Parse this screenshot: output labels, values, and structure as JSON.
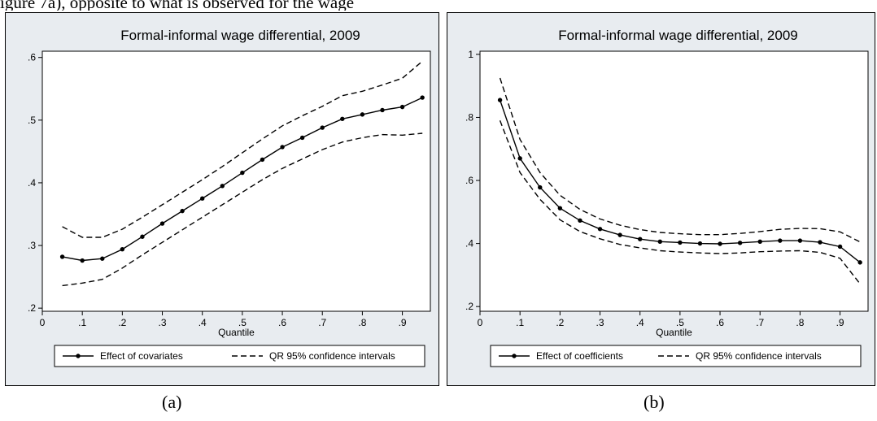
{
  "header_fragment": "igure 7a), opposite to what is observed for the wage",
  "chart_data": [
    {
      "type": "line",
      "title": "Formal-informal wage differential, 2009",
      "xlabel": "Quantile",
      "ylabel": "",
      "xlim": [
        0,
        0.97
      ],
      "ylim": [
        0.195,
        0.61
      ],
      "xticks": [
        0,
        0.1,
        0.2,
        0.3,
        0.4,
        0.5,
        0.6,
        0.7,
        0.8,
        0.9
      ],
      "xtick_labels": [
        "0",
        ".1",
        ".2",
        ".3",
        ".4",
        ".5",
        ".6",
        ".7",
        ".8",
        ".9"
      ],
      "yticks": [
        0.2,
        0.3,
        0.4,
        0.5,
        0.6
      ],
      "ytick_labels": [
        ".2",
        ".3",
        ".4",
        ".5",
        ".6"
      ],
      "grid": false,
      "legend_position": "bottom",
      "x": [
        0.05,
        0.1,
        0.15,
        0.2,
        0.25,
        0.3,
        0.35,
        0.4,
        0.45,
        0.5,
        0.55,
        0.6,
        0.65,
        0.7,
        0.75,
        0.8,
        0.85,
        0.9,
        0.95
      ],
      "series": [
        {
          "name": "Effect of covariates",
          "style": "solid-markers",
          "values": [
            0.282,
            0.276,
            0.279,
            0.294,
            0.314,
            0.335,
            0.355,
            0.375,
            0.395,
            0.416,
            0.437,
            0.457,
            0.472,
            0.488,
            0.502,
            0.509,
            0.516,
            0.521,
            0.536
          ]
        },
        {
          "name": "QR 95% confidence intervals",
          "style": "dashed",
          "values": [
            0.33,
            0.313,
            0.313,
            0.326,
            0.345,
            0.365,
            0.385,
            0.405,
            0.426,
            0.448,
            0.47,
            0.491,
            0.507,
            0.522,
            0.539,
            0.546,
            0.556,
            0.567,
            0.594
          ]
        },
        {
          "name": "",
          "style": "dashed",
          "values": [
            0.236,
            0.24,
            0.246,
            0.264,
            0.285,
            0.305,
            0.325,
            0.345,
            0.365,
            0.385,
            0.405,
            0.423,
            0.438,
            0.453,
            0.465,
            0.472,
            0.477,
            0.476,
            0.479
          ]
        }
      ]
    },
    {
      "type": "line",
      "title": "Formal-informal wage differential, 2009",
      "xlabel": "Quantile",
      "ylabel": "",
      "xlim": [
        0,
        0.97
      ],
      "ylim": [
        0.185,
        1.01
      ],
      "xticks": [
        0,
        0.1,
        0.2,
        0.3,
        0.4,
        0.5,
        0.6,
        0.7,
        0.8,
        0.9
      ],
      "xtick_labels": [
        "0",
        ".1",
        ".2",
        ".3",
        ".4",
        ".5",
        ".6",
        ".7",
        ".8",
        ".9"
      ],
      "yticks": [
        0.2,
        0.4,
        0.6,
        0.8,
        1.0
      ],
      "ytick_labels": [
        ".2",
        ".4",
        ".6",
        ".8",
        "1"
      ],
      "grid": false,
      "legend_position": "bottom",
      "x": [
        0.05,
        0.1,
        0.15,
        0.2,
        0.25,
        0.3,
        0.35,
        0.4,
        0.45,
        0.5,
        0.55,
        0.6,
        0.65,
        0.7,
        0.75,
        0.8,
        0.85,
        0.9,
        0.95
      ],
      "series": [
        {
          "name": "Effect of coefficients",
          "style": "solid-markers",
          "values": [
            0.855,
            0.67,
            0.578,
            0.512,
            0.473,
            0.446,
            0.427,
            0.414,
            0.406,
            0.403,
            0.4,
            0.399,
            0.402,
            0.406,
            0.409,
            0.409,
            0.404,
            0.39,
            0.34
          ]
        },
        {
          "name": "QR 95% confidence intervals",
          "style": "dashed",
          "values": [
            0.925,
            0.73,
            0.625,
            0.553,
            0.508,
            0.478,
            0.458,
            0.444,
            0.435,
            0.431,
            0.428,
            0.428,
            0.432,
            0.438,
            0.445,
            0.448,
            0.447,
            0.437,
            0.405
          ]
        },
        {
          "name": "",
          "style": "dashed",
          "values": [
            0.79,
            0.625,
            0.54,
            0.475,
            0.438,
            0.415,
            0.397,
            0.386,
            0.377,
            0.373,
            0.37,
            0.368,
            0.37,
            0.374,
            0.376,
            0.377,
            0.372,
            0.353,
            0.272
          ]
        }
      ]
    }
  ],
  "captions": [
    "(a)",
    "(b)"
  ]
}
